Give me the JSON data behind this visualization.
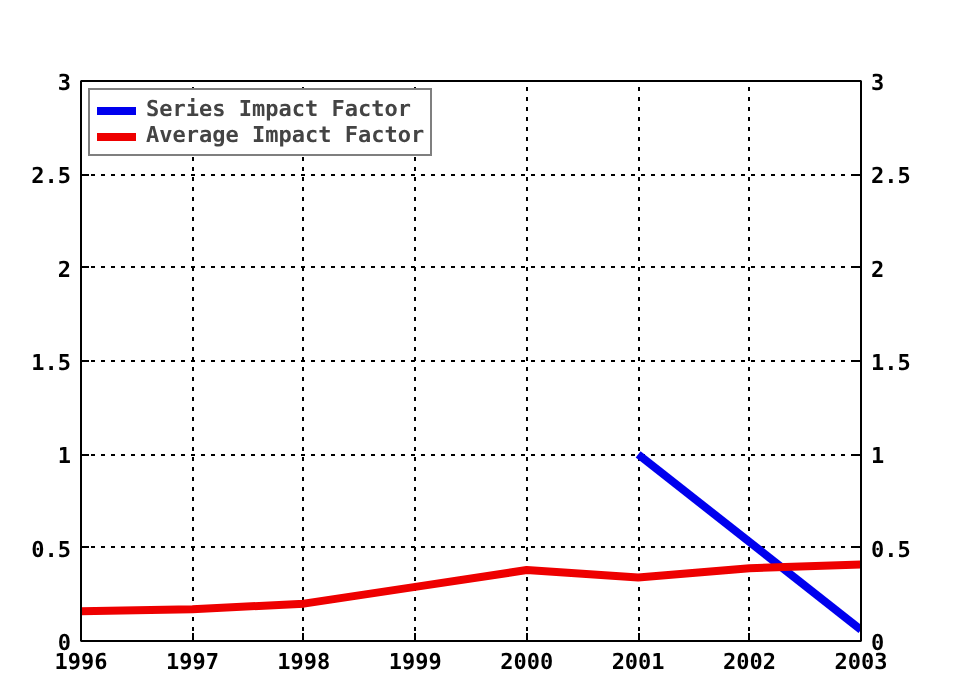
{
  "chart_data": {
    "type": "line",
    "x": [
      1996,
      1997,
      1998,
      1999,
      2000,
      2001,
      2002,
      2003
    ],
    "series": [
      {
        "name": "Series Impact Factor",
        "color": "#0000ee",
        "x": [
          2001,
          2003
        ],
        "values": [
          1,
          0.06
        ]
      },
      {
        "name": "Average Impact Factor",
        "color": "#ee0000",
        "values": [
          0.16,
          0.17,
          0.2,
          0.29,
          0.38,
          0.34,
          0.39,
          0.41
        ]
      }
    ],
    "xlim": [
      1996,
      2003
    ],
    "xticks": [
      1996,
      1997,
      1998,
      1999,
      2000,
      2001,
      2002,
      2003
    ],
    "ylim": [
      0,
      3
    ],
    "yticks": [
      0,
      0.5,
      1,
      1.5,
      2,
      2.5,
      3
    ],
    "y2lim": [
      0,
      3
    ],
    "y2ticks": [
      0,
      0.5,
      1,
      1.5,
      2,
      2.5,
      3
    ],
    "grid": true,
    "legend": "top left",
    "line_style": "solid",
    "marker": "none"
  }
}
